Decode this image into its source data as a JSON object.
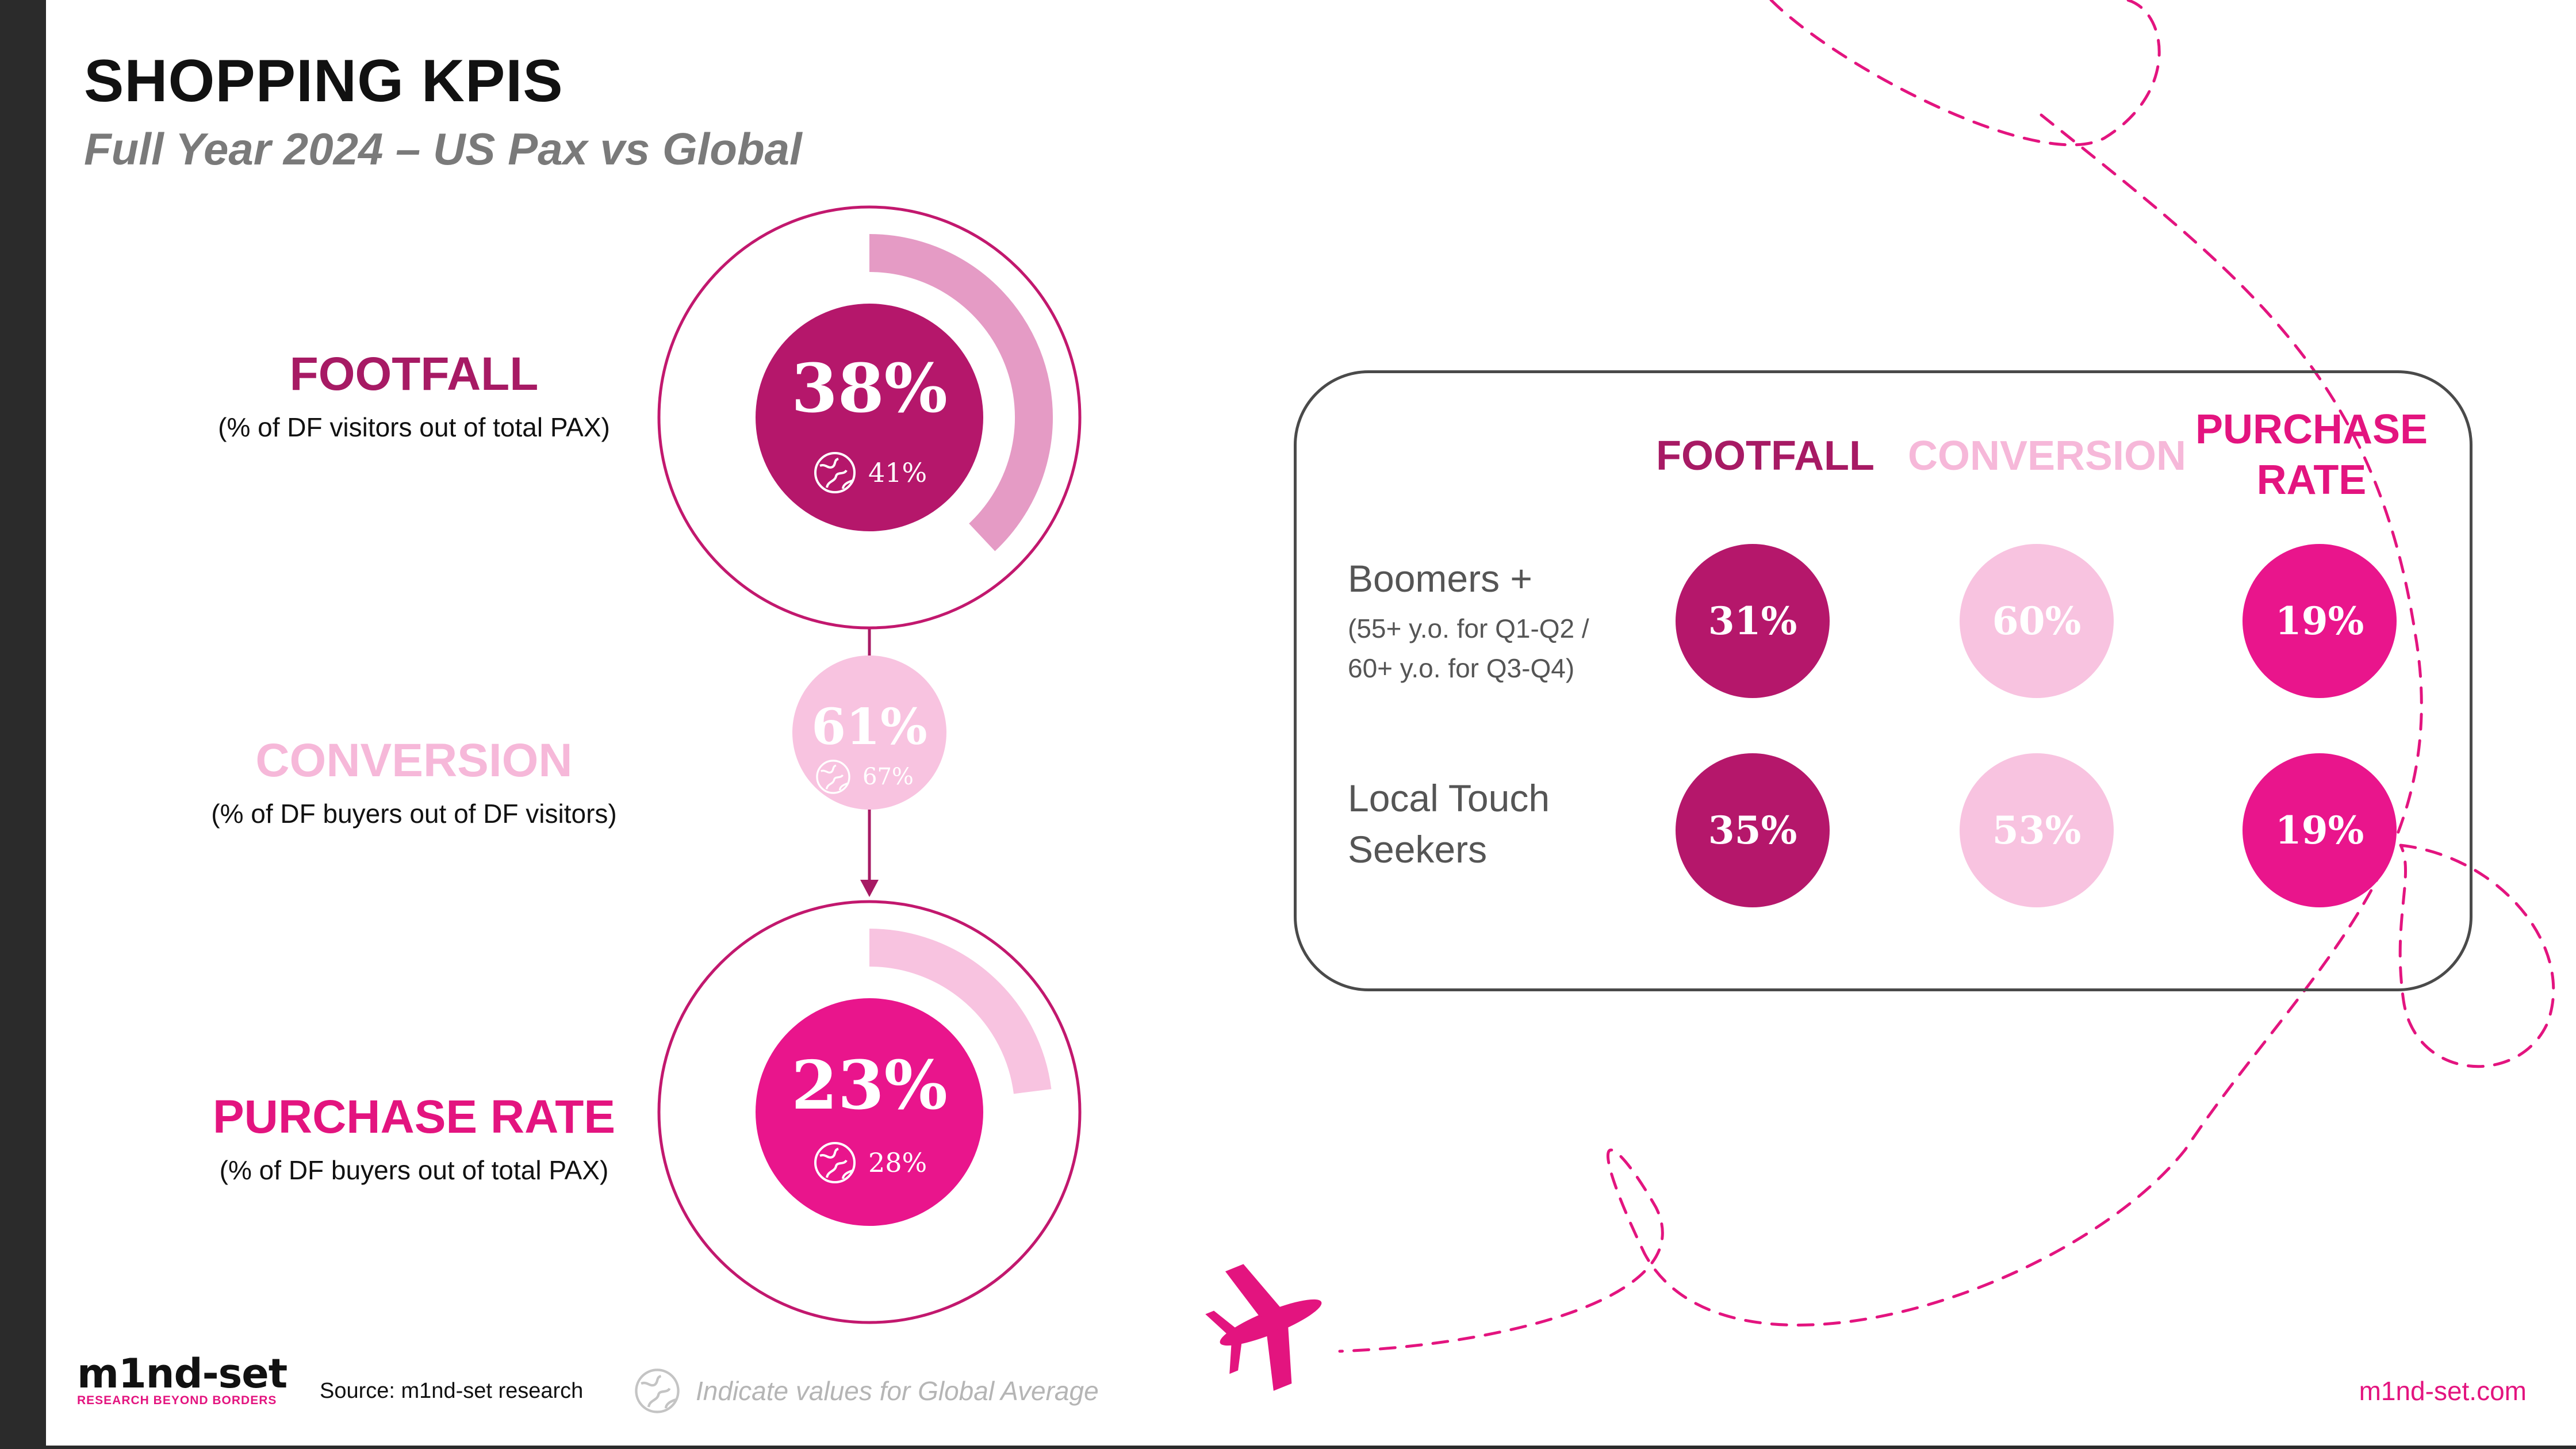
{
  "header": {
    "title": "SHOPPING KPIS",
    "subtitle": "Full Year 2024 – US Pax vs Global"
  },
  "kpis": [
    {
      "name": "FOOTFALL",
      "description": "(% of DF visitors out of total PAX)",
      "value": "38%",
      "global_value": "41%",
      "color": "#b5176b",
      "ring_fill": 0.38,
      "ring_color": "#e59bc5"
    },
    {
      "name": "CONVERSION",
      "description": "(% of DF buyers out of DF visitors)",
      "value": "61%",
      "global_value": "67%",
      "color": "#f8c3e0"
    },
    {
      "name": "PURCHASE RATE",
      "description": "(% of DF buyers out of total PAX)",
      "value": "23%",
      "global_value": "28%",
      "color": "#e9158c",
      "ring_fill": 0.23,
      "ring_color": "#f8c3e0"
    }
  ],
  "segments_table": {
    "columns": [
      {
        "label": "FOOTFALL",
        "color": "#a71a64"
      },
      {
        "label": "CONVERSION",
        "color": "#f6b8d9"
      },
      {
        "label": "PURCHASE RATE",
        "color": "#e3147f"
      }
    ],
    "rows": [
      {
        "label": "Boomers +",
        "sublabel_1": "(55+ y.o. for Q1-Q2 /",
        "sublabel_2": "60+ y.o. for Q3-Q4)",
        "values": [
          "31%",
          "60%",
          "19%"
        ]
      },
      {
        "label_1": "Local Touch",
        "label_2": "Seekers",
        "values": [
          "35%",
          "53%",
          "19%"
        ]
      }
    ],
    "dot_colors": [
      "#b5176b",
      "#f8c3e0",
      "#e9158c"
    ]
  },
  "footer": {
    "logo_text": "m1nd-set",
    "logo_tagline": "RESEARCH BEYOND BORDERS",
    "source": "Source: m1nd-set research",
    "legend": "Indicate values for Global Average",
    "website": "m1nd-set.com"
  },
  "icons": {
    "globe": "globe-icon",
    "airplane": "airplane-icon"
  },
  "colors": {
    "accent": "#e3147f",
    "dark": "#2b2b2b",
    "ring_outline": "#c2186e"
  }
}
